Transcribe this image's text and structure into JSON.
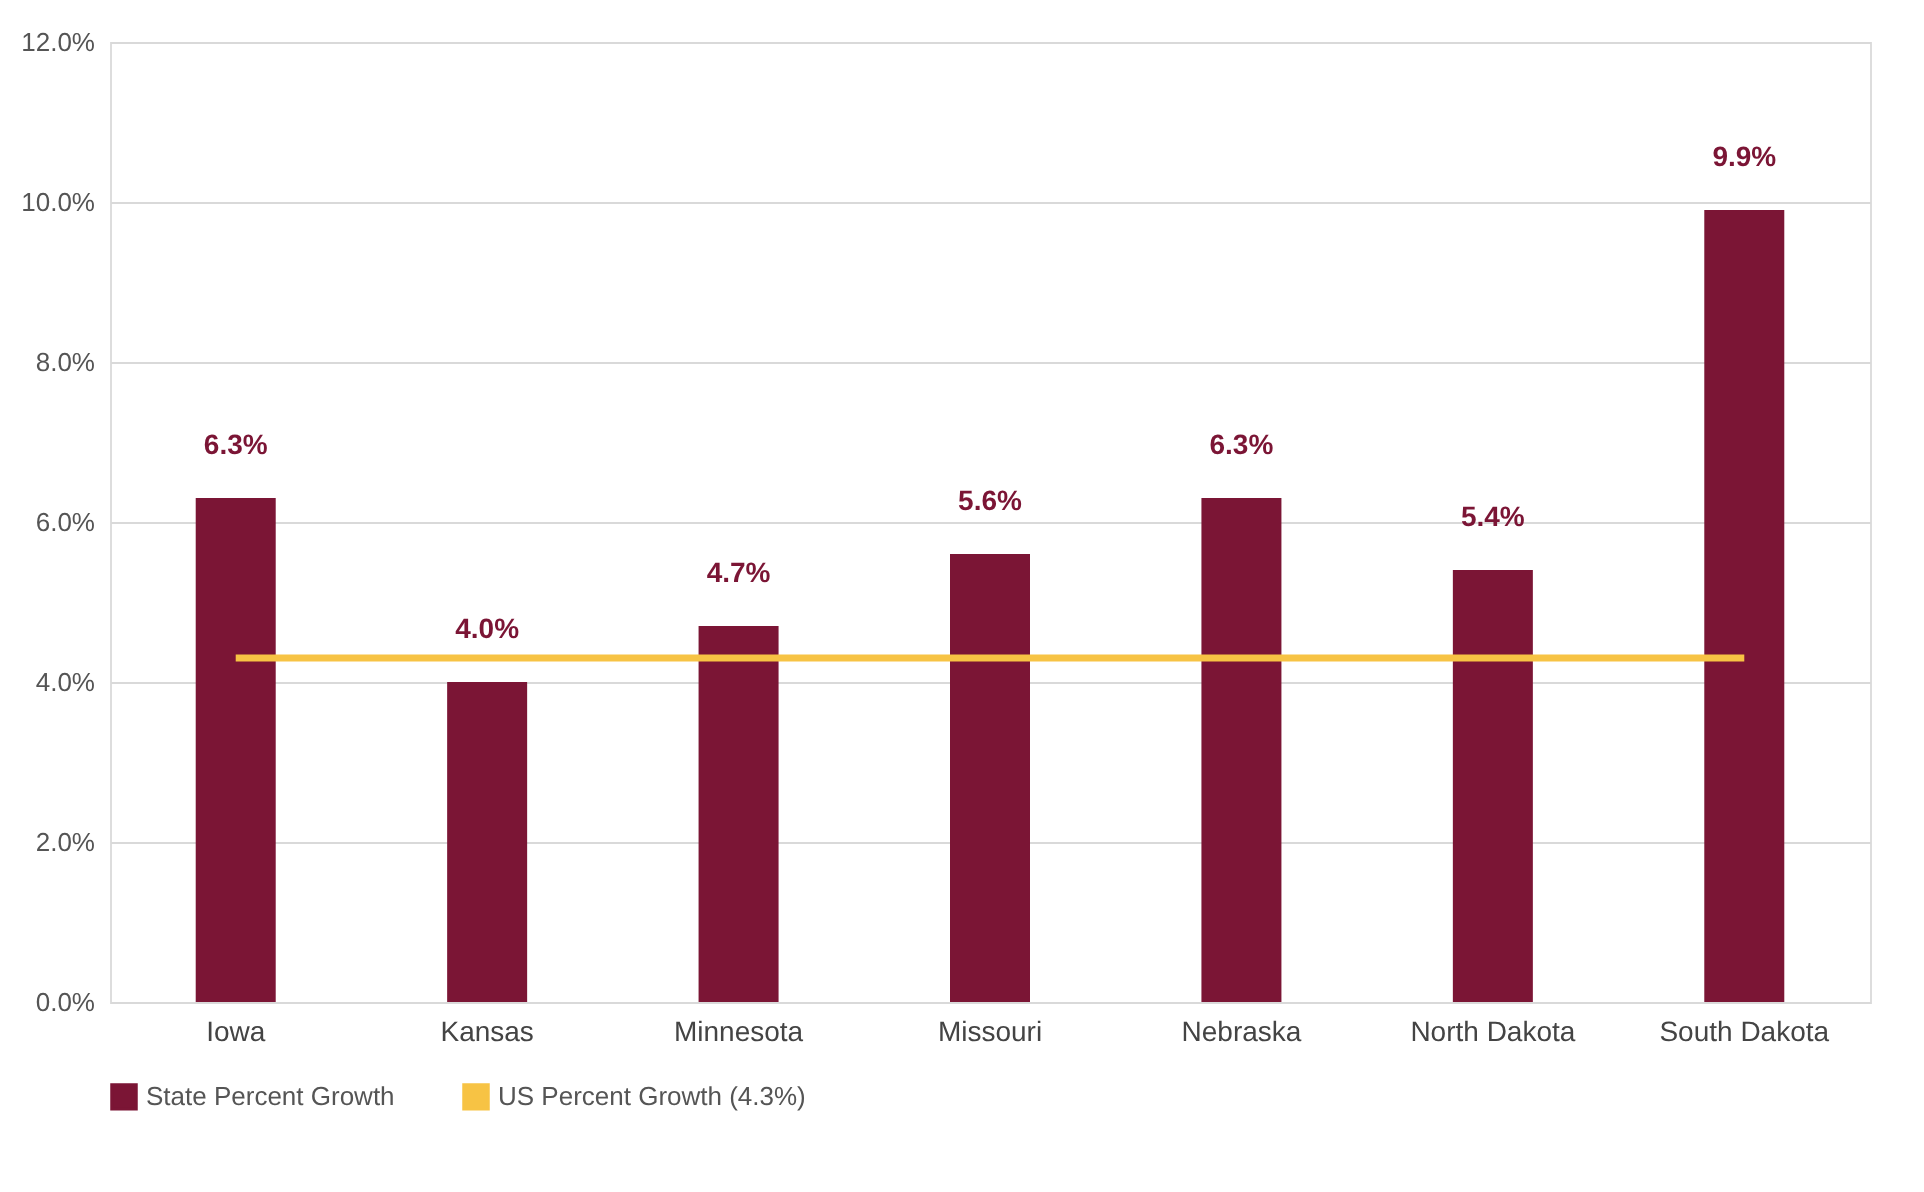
{
  "chart_data": {
    "type": "bar",
    "categories": [
      "Iowa",
      "Kansas",
      "Minnesota",
      "Missouri",
      "Nebraska",
      "North Dakota",
      "South Dakota"
    ],
    "series": [
      {
        "name": "State Percent Growth",
        "color": "#7b1535",
        "values": [
          6.3,
          4.0,
          4.7,
          5.6,
          6.3,
          5.4,
          9.9
        ],
        "value_labels": [
          "6.3%",
          "4.0%",
          "4.7%",
          "5.6%",
          "6.3%",
          "5.4%",
          "9.9%"
        ]
      },
      {
        "name": "US Percent Growth (4.3%)",
        "type": "line",
        "color": "#f7c344",
        "values": [
          4.3,
          4.3,
          4.3,
          4.3,
          4.3,
          4.3,
          4.3
        ]
      }
    ],
    "ylim": [
      0,
      12
    ],
    "yticks": [
      {
        "value": 0,
        "label": "0.0%"
      },
      {
        "value": 2,
        "label": "2.0%"
      },
      {
        "value": 4,
        "label": "4.0%"
      },
      {
        "value": 6,
        "label": "6.0%"
      },
      {
        "value": 8,
        "label": "8.0%"
      },
      {
        "value": 10,
        "label": "10.0%"
      },
      {
        "value": 12,
        "label": "12.0%"
      }
    ],
    "grid": "y",
    "legend": "bottom",
    "marker": "none",
    "line_style": "solid"
  }
}
